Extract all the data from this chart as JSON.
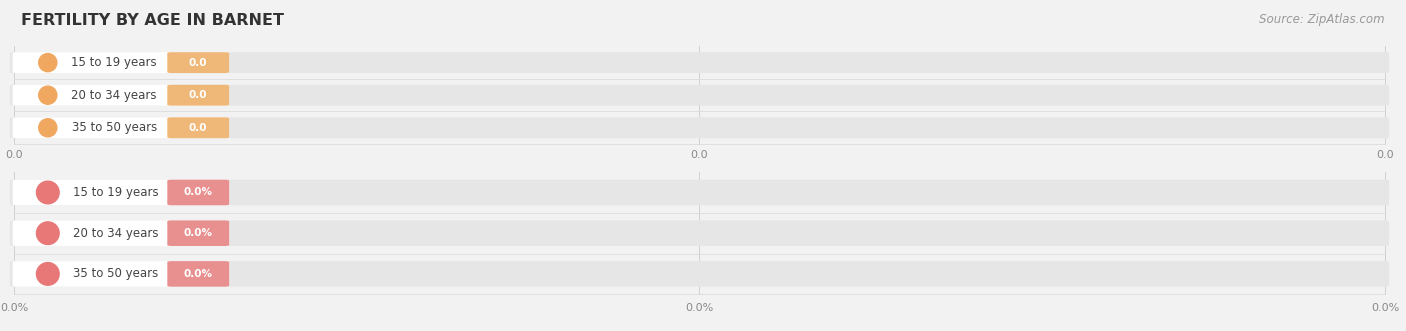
{
  "title": "FERTILITY BY AGE IN BARNET",
  "source": "Source: ZipAtlas.com",
  "top_group": {
    "labels": [
      "15 to 19 years",
      "20 to 34 years",
      "35 to 50 years"
    ],
    "values": [
      0.0,
      0.0,
      0.0
    ],
    "pill_bg_color": "#ffffff",
    "circle_color": "#f0a860",
    "value_badge_color": "#f0b878",
    "value_texts": [
      "0.0",
      "0.0",
      "0.0"
    ],
    "tick_label": "0.0"
  },
  "bottom_group": {
    "labels": [
      "15 to 19 years",
      "20 to 34 years",
      "35 to 50 years"
    ],
    "values": [
      0.0,
      0.0,
      0.0
    ],
    "pill_bg_color": "#ffffff",
    "circle_color": "#e87878",
    "value_badge_color": "#e89090",
    "value_texts": [
      "0.0%",
      "0.0%",
      "0.0%"
    ],
    "tick_label": "0.0%"
  },
  "background_color": "#f2f2f2",
  "track_color": "#e6e6e6",
  "separator_color": "#d8d8d8",
  "grid_line_color": "#d0d0d0",
  "tick_color": "#888888",
  "title_color": "#333333",
  "source_color": "#999999",
  "label_color": "#444444",
  "fig_width": 14.06,
  "fig_height": 3.31,
  "dpi": 100
}
